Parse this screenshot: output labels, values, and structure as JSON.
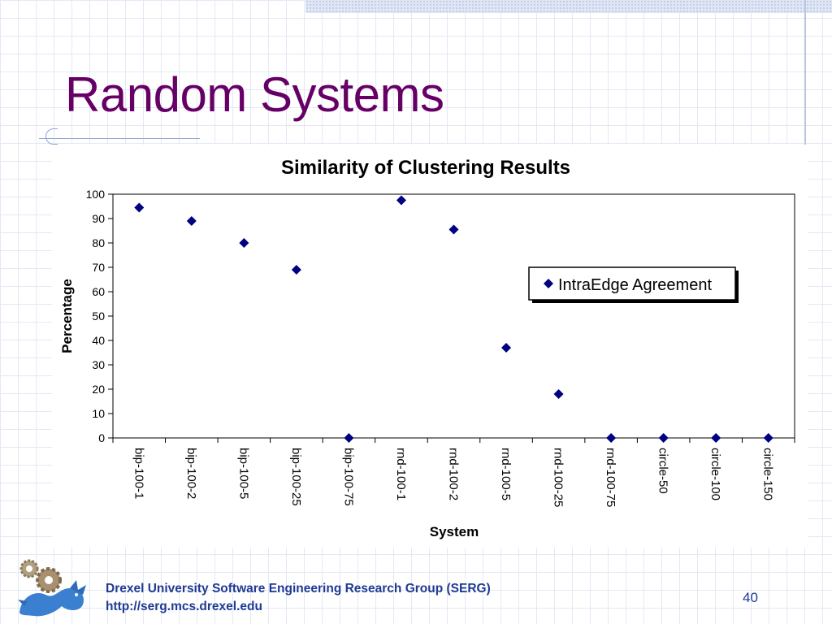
{
  "slide": {
    "title": "Random Systems",
    "footer_line1": "Drexel University Software Engineering Research Group (SERG)",
    "footer_line2": "http://serg.mcs.drexel.edu",
    "page_number": "40"
  },
  "colors": {
    "title": "#660066",
    "footer": "#1f3a93",
    "marker": "#000080"
  },
  "chart_data": {
    "type": "scatter",
    "title": "Similarity of Clustering Results",
    "xlabel": "System",
    "ylabel": "Percentage",
    "ylim": [
      0,
      100
    ],
    "yticks": [
      0,
      10,
      20,
      30,
      40,
      50,
      60,
      70,
      80,
      90,
      100
    ],
    "categories": [
      "bip-100-1",
      "bip-100-2",
      "bip-100-5",
      "bip-100-25",
      "bip-100-75",
      "rnd-100-1",
      "rnd-100-2",
      "rnd-100-5",
      "rnd-100-25",
      "rnd-100-75",
      "circle-50",
      "circle-100",
      "circle-150"
    ],
    "series": [
      {
        "name": "IntraEdge Agreement",
        "values": [
          94.5,
          89,
          80,
          69,
          0,
          97.5,
          85.5,
          37,
          18,
          0,
          0,
          0,
          0
        ],
        "marker": "diamond"
      }
    ],
    "grid": false,
    "legend": "right"
  }
}
